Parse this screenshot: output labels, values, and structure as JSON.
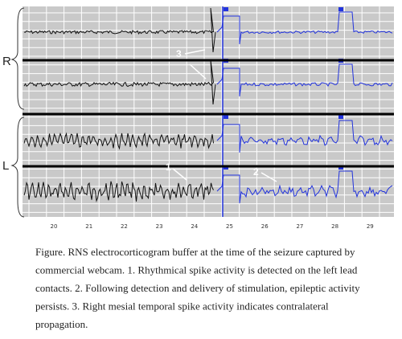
{
  "side_labels": [
    "R",
    "L"
  ],
  "annotations": [
    "1",
    "2",
    "3"
  ],
  "axis": {
    "ticks": [
      "20",
      "21",
      "22",
      "23",
      "24",
      "25",
      "26",
      "27",
      "28",
      "29"
    ]
  },
  "caption": {
    "lines": [
      "Figure. RNS electrocorticogram buffer at the time of the seizure captured by",
      "commercial webcam. 1. Rhythmical spike activity is detected on the left lead",
      "contacts. 2. Following detection and delivery of stimulation, epileptic activity",
      "persists. 3. Right mesial temporal spike activity indicates contralateral",
      "propagation."
    ]
  }
}
